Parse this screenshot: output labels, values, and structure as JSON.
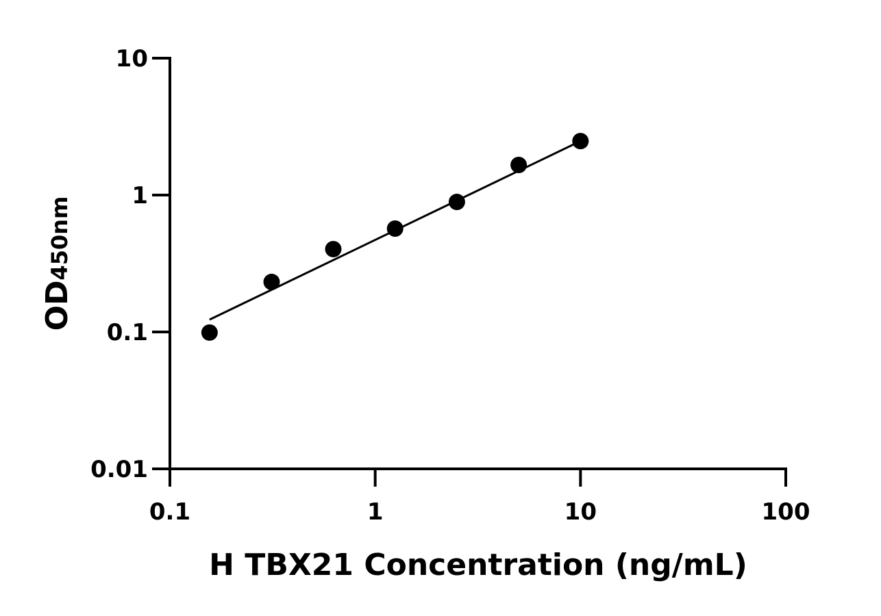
{
  "chart_data": {
    "type": "scatter",
    "title": "",
    "xlabel": "H TBX21 Concentration (ng/mL)",
    "ylabel_main": "OD",
    "ylabel_sub": "450nm",
    "xscale": "log",
    "yscale": "log",
    "xlim": [
      0.1,
      100
    ],
    "ylim": [
      0.01,
      10
    ],
    "xticks": [
      "0.1",
      "1",
      "10",
      "100"
    ],
    "yticks": [
      "0.01",
      "0.1",
      "1",
      "10"
    ],
    "grid": false,
    "points": {
      "x": [
        0.156,
        0.313,
        0.625,
        1.25,
        2.5,
        5,
        10
      ],
      "y": [
        0.099,
        0.232,
        0.403,
        0.569,
        0.891,
        1.66,
        2.48
      ]
    },
    "fit_line": {
      "x": [
        0.156,
        10
      ],
      "y": [
        0.123,
        2.48
      ]
    },
    "colors": {
      "points": "#000000",
      "line": "#000000",
      "axes": "#000000"
    }
  }
}
